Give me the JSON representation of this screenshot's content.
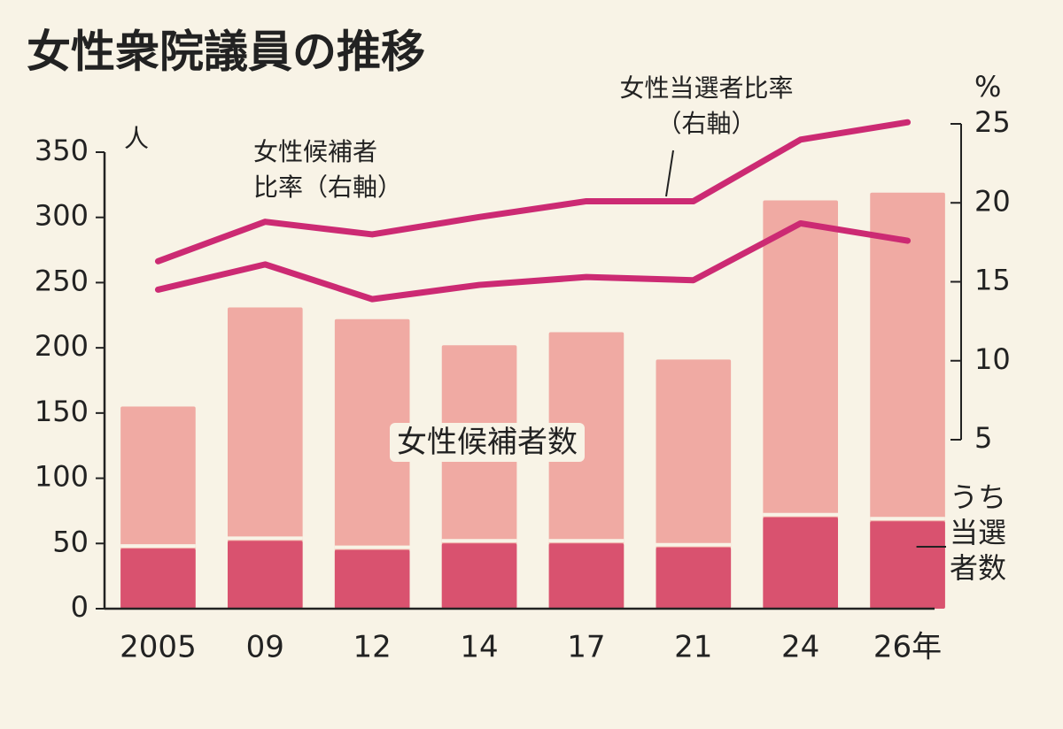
{
  "chart_data": {
    "type": "bar",
    "title": "女性衆院議員の推移",
    "categories": [
      "2005",
      "09",
      "12",
      "14",
      "17",
      "21",
      "24",
      "26年"
    ],
    "y_label": "人",
    "y2_label": "%",
    "series": [
      {
        "name": "女性候補者数",
        "color": "#f0aaa3",
        "values": [
          155,
          231,
          222,
          202,
          212,
          191,
          313,
          319
        ]
      },
      {
        "name": "うち当選者数",
        "color": "#d9526f",
        "values": [
          46,
          52,
          45,
          50,
          50,
          47,
          70,
          67
        ]
      },
      {
        "name": "女性候補者比率（右軸）",
        "type": "line",
        "axis": "y2",
        "color": "#cc2a73",
        "values": [
          14.5,
          16.1,
          13.9,
          14.8,
          15.3,
          15.1,
          18.7,
          17.6
        ]
      },
      {
        "name": "女性当選者比率（右軸）",
        "type": "line",
        "axis": "y2",
        "color": "#cc2a73",
        "values": [
          16.3,
          18.8,
          18.0,
          19.1,
          20.1,
          20.1,
          24.0,
          25.1
        ]
      }
    ],
    "ylim": [
      0,
      350
    ],
    "yticks": [
      0,
      50,
      100,
      150,
      200,
      250,
      300,
      350
    ],
    "y2lim": [
      5,
      25
    ],
    "y2ticks": [
      5,
      10,
      15,
      20,
      25
    ]
  }
}
